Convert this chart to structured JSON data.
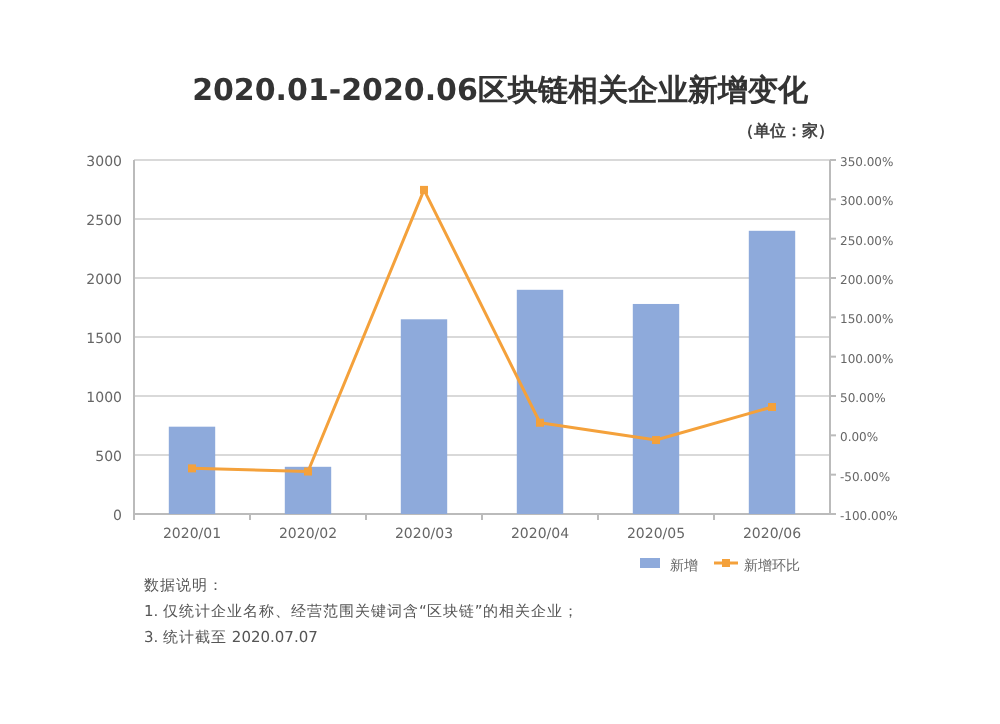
{
  "chart_data": {
    "type": "bar",
    "title": "2020.01-2020.06区块链相关企业新增变化",
    "categories": [
      "2020/01",
      "2020/02",
      "2020/03",
      "2020/04",
      "2020/05",
      "2020/06"
    ],
    "series": [
      {
        "name": "新增",
        "color": "#8eaadb",
        "values": [
          740,
          400,
          1650,
          1900,
          1780,
          2400
        ]
      },
      {
        "name": "新增环比",
        "type": "line",
        "axis": "y2",
        "color": "#f4a13b",
        "marker": "square",
        "values": [
          -42,
          -46,
          312,
          16,
          -6,
          36
        ]
      }
    ],
    "ylim": [
      0,
      3000
    ],
    "yticks": [
      0,
      500,
      1000,
      1500,
      2000,
      2500,
      3000
    ],
    "y2lim": [
      -100,
      350
    ],
    "y2ticks": [
      {
        "value": -100,
        "label": "-100.00%"
      },
      {
        "value": -50,
        "label": "-50.00%"
      },
      {
        "value": 0,
        "label": "0.00%"
      },
      {
        "value": 50,
        "label": "50.00%"
      },
      {
        "value": 100,
        "label": "100.00%"
      },
      {
        "value": 150,
        "label": "150.00%"
      },
      {
        "value": 200,
        "label": "200.00%"
      },
      {
        "value": 250,
        "label": "250.00%"
      },
      {
        "value": 300,
        "label": "300.00%"
      },
      {
        "value": 350,
        "label": "350.00%"
      }
    ],
    "grid": "y",
    "legend": "bottom right",
    "annotations": [
      "（单位：家）",
      "数据说明：",
      "1. 仅统计企业名称、经营范围关键词含“区块链”的相关企业；",
      "3. 统计截至 2020.07.07"
    ]
  }
}
